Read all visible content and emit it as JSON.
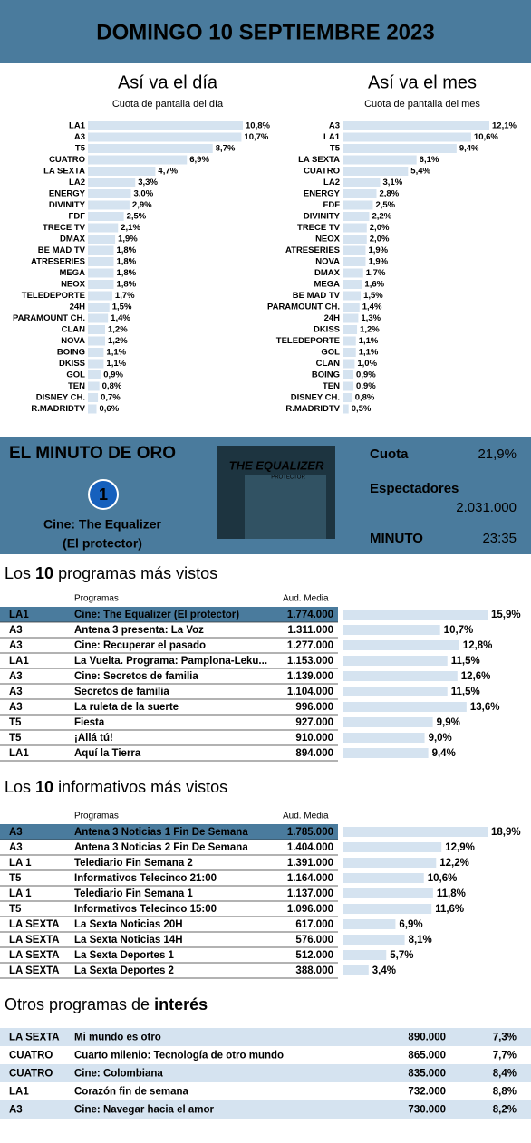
{
  "header": {
    "title": "DOMINGO 10 SEPTIEMBRE 2023"
  },
  "chart_data": [
    {
      "type": "bar",
      "title": "Así va el día",
      "subtitle": "Cuota de pantalla del día",
      "color": "#d5e3f0",
      "categories": [
        "LA1",
        "A3",
        "T5",
        "CUATRO",
        "LA SEXTA",
        "LA2",
        "ENERGY",
        "DIVINITY",
        "FDF",
        "TRECE TV",
        "DMAX",
        "BE MAD TV",
        "ATRESERIES",
        "MEGA",
        "NEOX",
        "TELEDEPORTE",
        "24H",
        "PARAMOUNT CH.",
        "CLAN",
        "NOVA",
        "BOING",
        "DKISS",
        "GOL",
        "TEN",
        "DISNEY CH.",
        "R.MADRIDTV"
      ],
      "values": [
        10.8,
        10.7,
        8.7,
        6.9,
        4.7,
        3.3,
        3.0,
        2.9,
        2.5,
        2.1,
        1.9,
        1.8,
        1.8,
        1.8,
        1.8,
        1.7,
        1.5,
        1.4,
        1.2,
        1.2,
        1.1,
        1.1,
        0.9,
        0.8,
        0.7,
        0.6
      ],
      "value_labels": [
        "10,8%",
        "10,7%",
        "8,7%",
        "6,9%",
        "4,7%",
        "3,3%",
        "3,0%",
        "2,9%",
        "2,5%",
        "2,1%",
        "1,9%",
        "1,8%",
        "1,8%",
        "1,8%",
        "1,8%",
        "1,7%",
        "1,5%",
        "1,4%",
        "1,2%",
        "1,2%",
        "1,1%",
        "1,1%",
        "0,9%",
        "0,8%",
        "0,7%",
        "0,6%"
      ]
    },
    {
      "type": "bar",
      "title": "Así va el mes",
      "subtitle": "Cuota de pantalla del mes",
      "color": "#d5e3f0",
      "categories": [
        "A3",
        "LA1",
        "T5",
        "LA SEXTA",
        "CUATRO",
        "LA2",
        "ENERGY",
        "FDF",
        "DIVINITY",
        "TRECE TV",
        "NEOX",
        "ATRESERIES",
        "NOVA",
        "DMAX",
        "MEGA",
        "BE MAD TV",
        "PARAMOUNT CH.",
        "24H",
        "DKISS",
        "TELEDEPORTE",
        "GOL",
        "CLAN",
        "BOING",
        "TEN",
        "DISNEY CH.",
        "R.MADRIDTV"
      ],
      "values": [
        12.1,
        10.6,
        9.4,
        6.1,
        5.4,
        3.1,
        2.8,
        2.5,
        2.2,
        2.0,
        2.0,
        1.9,
        1.9,
        1.7,
        1.6,
        1.5,
        1.4,
        1.3,
        1.2,
        1.1,
        1.1,
        1.0,
        0.9,
        0.9,
        0.8,
        0.5
      ],
      "value_labels": [
        "12,1%",
        "10,6%",
        "9,4%",
        "6,1%",
        "5,4%",
        "3,1%",
        "2,8%",
        "2,5%",
        "2,2%",
        "2,0%",
        "2,0%",
        "1,9%",
        "1,9%",
        "1,7%",
        "1,6%",
        "1,5%",
        "1,4%",
        "1,3%",
        "1,2%",
        "1,1%",
        "1,1%",
        "1,0%",
        "0,9%",
        "0,9%",
        "0,8%",
        "0,5%"
      ]
    }
  ],
  "golden_minute": {
    "title": "EL MINUTO DE ORO",
    "channel_logo": "1",
    "program": "Cine: The Equalizer",
    "program_sub": "(El protector)",
    "poster_title": "THE EQUALIZER",
    "poster_subtitle": "PROTECTOR",
    "share_label": "Cuota",
    "share": "21,9%",
    "viewers_label": "Espectadores",
    "viewers": "2.031.000",
    "minute_label": "MINUTO",
    "minute": "23:35"
  },
  "top_programs": {
    "heading": [
      "Los",
      "10",
      "programas más vistos"
    ],
    "columns": [
      "Programas",
      "Aud. Media"
    ],
    "rows": [
      {
        "channel": "LA1",
        "program": "Cine: The Equalizer (El protector)",
        "audience": "1.774.000",
        "share": 15.9,
        "share_label": "15,9%"
      },
      {
        "channel": "A3",
        "program": "Antena 3 presenta: La Voz",
        "audience": "1.311.000",
        "share": 10.7,
        "share_label": "10,7%"
      },
      {
        "channel": "A3",
        "program": "Cine: Recuperar el pasado",
        "audience": "1.277.000",
        "share": 12.8,
        "share_label": "12,8%"
      },
      {
        "channel": "LA1",
        "program": "La Vuelta. Programa: Pamplona-Leku...",
        "audience": "1.153.000",
        "share": 11.5,
        "share_label": "11,5%"
      },
      {
        "channel": "A3",
        "program": "Cine: Secretos de familia",
        "audience": "1.139.000",
        "share": 12.6,
        "share_label": "12,6%"
      },
      {
        "channel": "A3",
        "program": "Secretos de familia",
        "audience": "1.104.000",
        "share": 11.5,
        "share_label": "11,5%"
      },
      {
        "channel": "A3",
        "program": "La ruleta de la suerte",
        "audience": "996.000",
        "share": 13.6,
        "share_label": "13,6%"
      },
      {
        "channel": "T5",
        "program": "Fiesta",
        "audience": "927.000",
        "share": 9.9,
        "share_label": "9,9%"
      },
      {
        "channel": "T5",
        "program": "¡Allá tú!",
        "audience": "910.000",
        "share": 9.0,
        "share_label": "9,0%"
      },
      {
        "channel": "LA1",
        "program": "Aquí la Tierra",
        "audience": "894.000",
        "share": 9.4,
        "share_label": "9,4%"
      }
    ]
  },
  "top_news": {
    "heading": [
      "Los",
      "10",
      "informativos más vistos"
    ],
    "columns": [
      "Programas",
      "Aud. Media"
    ],
    "rows": [
      {
        "channel": "A3",
        "program": "Antena 3 Noticias 1 Fin De Semana",
        "audience": "1.785.000",
        "share": 18.9,
        "share_label": "18,9%"
      },
      {
        "channel": "A3",
        "program": "Antena 3 Noticias 2 Fin De Semana",
        "audience": "1.404.000",
        "share": 12.9,
        "share_label": "12,9%"
      },
      {
        "channel": "LA 1",
        "program": "Telediario Fin Semana 2",
        "audience": "1.391.000",
        "share": 12.2,
        "share_label": "12,2%"
      },
      {
        "channel": "T5",
        "program": "Informativos Telecinco 21:00",
        "audience": "1.164.000",
        "share": 10.6,
        "share_label": "10,6%"
      },
      {
        "channel": "LA 1",
        "program": "Telediario Fin Semana 1",
        "audience": "1.137.000",
        "share": 11.8,
        "share_label": "11,8%"
      },
      {
        "channel": "T5",
        "program": "Informativos Telecinco 15:00",
        "audience": "1.096.000",
        "share": 11.6,
        "share_label": "11,6%"
      },
      {
        "channel": "LA SEXTA",
        "program": "La Sexta Noticias 20H",
        "audience": "617.000",
        "share": 6.9,
        "share_label": "6,9%"
      },
      {
        "channel": "LA SEXTA",
        "program": "La Sexta Noticias 14H",
        "audience": "576.000",
        "share": 8.1,
        "share_label": "8,1%"
      },
      {
        "channel": "LA SEXTA",
        "program": "La Sexta Deportes 1",
        "audience": "512.000",
        "share": 5.7,
        "share_label": "5,7%"
      },
      {
        "channel": "LA SEXTA",
        "program": "La Sexta Deportes 2",
        "audience": "388.000",
        "share": 3.4,
        "share_label": "3,4%"
      }
    ]
  },
  "others": {
    "heading": [
      "Otros programas de",
      "interés"
    ],
    "rows": [
      {
        "channel": "LA SEXTA",
        "program": "Mi mundo es otro",
        "audience": "890.000",
        "share": "7,3%"
      },
      {
        "channel": "CUATRO",
        "program": "Cuarto milenio: Tecnología de otro mundo",
        "audience": "865.000",
        "share": "7,7%"
      },
      {
        "channel": "CUATRO",
        "program": "Cine: Colombiana",
        "audience": "835.000",
        "share": "8,4%"
      },
      {
        "channel": "LA1",
        "program": "Corazón fin de semana",
        "audience": "732.000",
        "share": "8,8%"
      },
      {
        "channel": "A3",
        "program": "Cine: Navegar hacia el amor",
        "audience": "730.000",
        "share": "8,2%"
      }
    ]
  }
}
